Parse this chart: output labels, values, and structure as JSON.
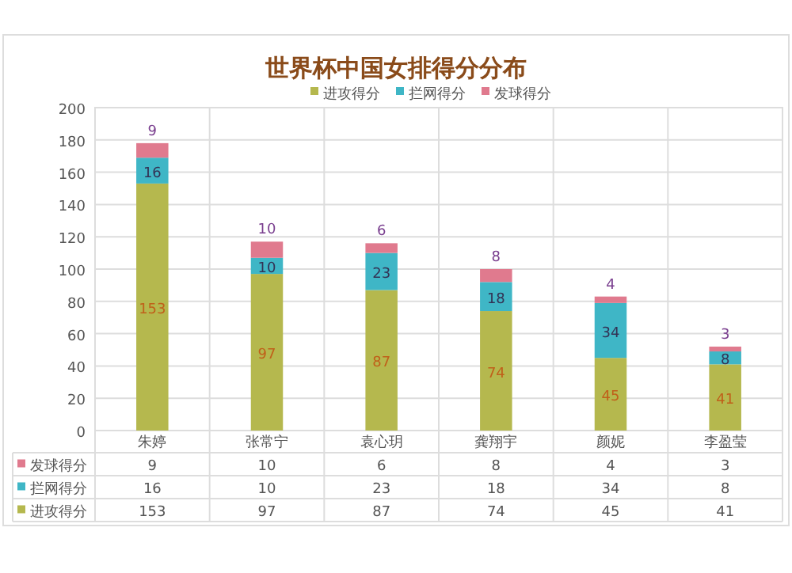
{
  "chart_data": {
    "type": "bar",
    "title": "世界杯中国女排得分分布",
    "categories": [
      "朱婷",
      "张常宁",
      "袁心玥",
      "龚翔宇",
      "颜妮",
      "李盈莹"
    ],
    "series": [
      {
        "name": "进攻得分",
        "color": "#b5b84e",
        "values": [
          153,
          97,
          87,
          74,
          45,
          41
        ],
        "value_labels": [
          "153",
          "97",
          "87",
          "74",
          "45",
          "41"
        ]
      },
      {
        "name": "拦网得分",
        "color": "#3fb6c6",
        "values": [
          16,
          10,
          23,
          18,
          34,
          8
        ],
        "value_labels": [
          "16",
          "10",
          "23",
          "18",
          "34",
          "8"
        ]
      },
      {
        "name": "发球得分",
        "color": "#e07a8e",
        "values": [
          9,
          10,
          6,
          8,
          4,
          3
        ],
        "value_labels": [
          "9",
          "10",
          "6",
          "8",
          "4",
          "3"
        ]
      }
    ],
    "stacked": true,
    "ylim": [
      0,
      200
    ],
    "yticks": [
      0,
      20,
      40,
      60,
      80,
      100,
      120,
      140,
      160,
      180,
      200
    ],
    "grid": true,
    "legend": "top",
    "data_labels": true,
    "annotations": [
      "9",
      "10",
      "6",
      "8",
      "4",
      "3",
      "16",
      "10",
      "23",
      "18",
      "34",
      "8",
      "153",
      "97",
      "87",
      "74",
      "45",
      "41"
    ]
  }
}
